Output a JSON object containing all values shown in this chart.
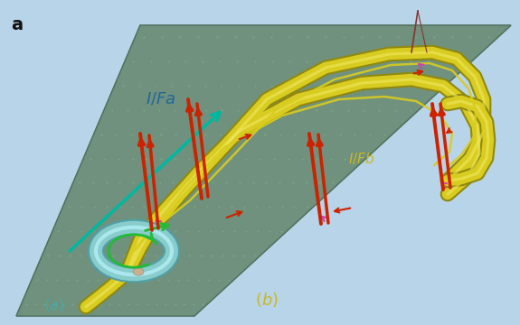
{
  "title_label": "a",
  "bg_top_color": "#b0cfe0",
  "bg_bot_color": "#c8dce8",
  "chip_color": "#6b8c78",
  "chip_edge_color": "#4a6a58",
  "chip_dot_color": "#7aaa88",
  "fiber_color": "#d8cc20",
  "fiber_hl_color": "#f0e860",
  "fiber_edge_color": "#908810",
  "ring_color": "#88cccc",
  "ring_edge_color": "#50a0a8",
  "ring_hl_color": "#aae8ee",
  "pulse_color": "#cc2200",
  "magenta_color": "#cc44aa",
  "green_color": "#22bb33",
  "teal_arrow_color": "#00aaaa",
  "label_color_fa": "#226699",
  "label_color_fb": "#c8b820",
  "label_color_a": "#44aaaa",
  "label_color_b": "#c8b820",
  "dot_rows": 12,
  "dot_cols": 20,
  "fiber_lw": 9,
  "inner_lw": 1.8
}
